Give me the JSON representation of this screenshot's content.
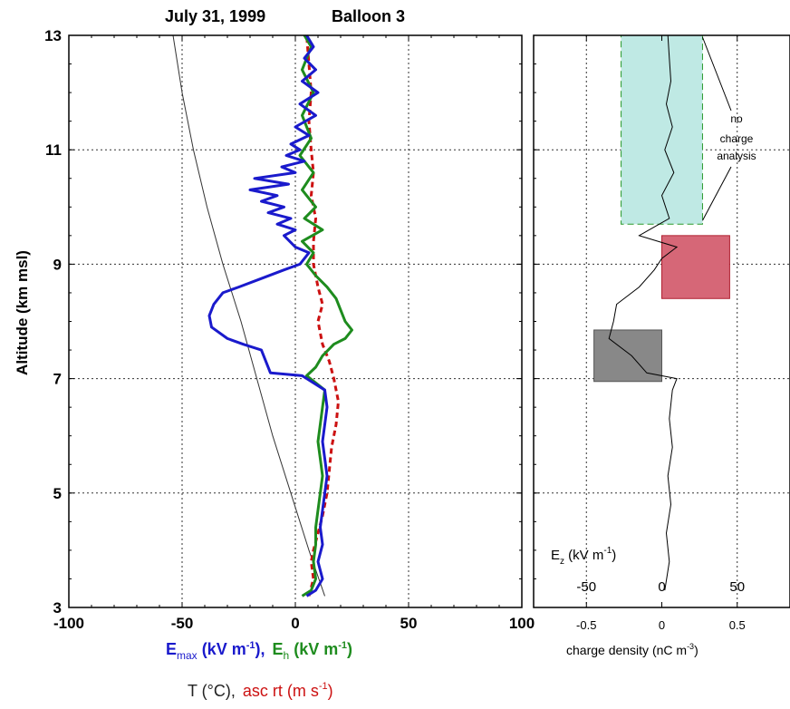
{
  "chart_data": [
    {
      "type": "line",
      "title": "July 31, 1999",
      "subtitle": "Balloon 3",
      "ylabel": "Altitude (km msl)",
      "xlabel_line1": {
        "emax_main": "E",
        "emax_sub": "max",
        "emax_rest": " (kV m",
        "emax_sup": "-1",
        "emax_close": "),",
        "eh_main": "E",
        "eh_sub": "h",
        "eh_rest": " (kV m",
        "eh_sup": "-1",
        "eh_close": ")"
      },
      "xlabel_line2": {
        "t_text": "T (°C),",
        "asc_text": "asc rt (m s",
        "asc_sup": "-1",
        "asc_close": ")"
      },
      "xlim": [
        -100,
        100
      ],
      "ylim": [
        3,
        13
      ],
      "xticks": [
        "-100",
        "-50",
        "0",
        "50",
        "100"
      ],
      "yticks": [
        "3",
        "5",
        "7",
        "9",
        "11",
        "13"
      ],
      "xgrid": [
        -50,
        0,
        50
      ],
      "ygrid": [
        5,
        7,
        9,
        11
      ],
      "colors": {
        "emax": "#1a1acc",
        "eh": "#1e8c1e",
        "temp": "#333333",
        "asc": "#cc1111"
      },
      "series": [
        {
          "key": "emax",
          "points": [
            [
              5,
              3.2
            ],
            [
              9,
              3.3
            ],
            [
              12,
              3.5
            ],
            [
              10,
              3.8
            ],
            [
              12,
              4.1
            ],
            [
              11,
              4.4
            ],
            [
              12,
              4.7
            ],
            [
              13,
              5.0
            ],
            [
              14,
              5.3
            ],
            [
              13,
              5.6
            ],
            [
              12,
              5.9
            ],
            [
              13,
              6.2
            ],
            [
              14,
              6.5
            ],
            [
              13,
              6.8
            ],
            [
              3,
              7.05
            ],
            [
              -11,
              7.1
            ],
            [
              -13,
              7.3
            ],
            [
              -15,
              7.5
            ],
            [
              -23,
              7.6
            ],
            [
              -30,
              7.7
            ],
            [
              -37,
              7.9
            ],
            [
              -38,
              8.1
            ],
            [
              -36,
              8.3
            ],
            [
              -32,
              8.5
            ],
            [
              -25,
              8.6
            ],
            [
              -15,
              8.75
            ],
            [
              -5,
              8.9
            ],
            [
              2,
              9.0
            ],
            [
              6,
              9.2
            ],
            [
              0,
              9.3
            ],
            [
              -5,
              9.5
            ],
            [
              0,
              9.6
            ],
            [
              -8,
              9.7
            ],
            [
              -2,
              9.8
            ],
            [
              -12,
              9.9
            ],
            [
              -5,
              10.0
            ],
            [
              -15,
              10.1
            ],
            [
              -8,
              10.2
            ],
            [
              -20,
              10.3
            ],
            [
              -3,
              10.4
            ],
            [
              -18,
              10.5
            ],
            [
              0,
              10.6
            ],
            [
              -6,
              10.7
            ],
            [
              4,
              10.8
            ],
            [
              -4,
              10.9
            ],
            [
              2,
              11.0
            ],
            [
              -2,
              11.1
            ],
            [
              6,
              11.25
            ],
            [
              0,
              11.4
            ],
            [
              9,
              11.6
            ],
            [
              2,
              11.8
            ],
            [
              10,
              12.0
            ],
            [
              3,
              12.2
            ],
            [
              9,
              12.4
            ],
            [
              4,
              12.6
            ],
            [
              8,
              12.8
            ],
            [
              5,
              13.0
            ]
          ]
        },
        {
          "key": "eh",
          "points": [
            [
              3,
              3.2
            ],
            [
              7,
              3.3
            ],
            [
              9,
              3.5
            ],
            [
              8,
              3.8
            ],
            [
              9,
              4.1
            ],
            [
              9,
              4.4
            ],
            [
              10,
              4.7
            ],
            [
              11,
              5.0
            ],
            [
              12,
              5.3
            ],
            [
              11,
              5.6
            ],
            [
              10,
              5.9
            ],
            [
              11,
              6.2
            ],
            [
              12,
              6.5
            ],
            [
              13,
              6.8
            ],
            [
              5,
              7.05
            ],
            [
              9,
              7.2
            ],
            [
              12,
              7.4
            ],
            [
              17,
              7.6
            ],
            [
              22,
              7.7
            ],
            [
              25,
              7.85
            ],
            [
              22,
              8.0
            ],
            [
              20,
              8.2
            ],
            [
              18,
              8.4
            ],
            [
              14,
              8.6
            ],
            [
              9,
              8.8
            ],
            [
              5,
              9.0
            ],
            [
              8,
              9.2
            ],
            [
              3,
              9.4
            ],
            [
              12,
              9.6
            ],
            [
              4,
              9.8
            ],
            [
              9,
              10.0
            ],
            [
              3,
              10.3
            ],
            [
              8,
              10.6
            ],
            [
              2,
              10.9
            ],
            [
              7,
              11.2
            ],
            [
              3,
              11.6
            ],
            [
              8,
              12.0
            ],
            [
              3,
              12.4
            ],
            [
              7,
              12.8
            ],
            [
              4,
              13.0
            ]
          ]
        },
        {
          "key": "asc",
          "points": [
            [
              6,
              3.2
            ],
            [
              8,
              3.5
            ],
            [
              7,
              3.8
            ],
            [
              8,
              4.0
            ],
            [
              10,
              4.3
            ],
            [
              12,
              4.6
            ],
            [
              14,
              5.0
            ],
            [
              15,
              5.4
            ],
            [
              16,
              5.8
            ],
            [
              18,
              6.2
            ],
            [
              19,
              6.6
            ],
            [
              17,
              7.0
            ],
            [
              15,
              7.3
            ],
            [
              12,
              7.6
            ],
            [
              10,
              8.0
            ],
            [
              12,
              8.3
            ],
            [
              10,
              8.6
            ],
            [
              8,
              9.0
            ],
            [
              8,
              9.4
            ],
            [
              9,
              9.8
            ],
            [
              7,
              10.2
            ],
            [
              8,
              10.6
            ],
            [
              7,
              11.0
            ],
            [
              6,
              11.5
            ],
            [
              7,
              12.0
            ],
            [
              6,
              12.5
            ],
            [
              5,
              13.0
            ]
          ]
        },
        {
          "key": "temp",
          "points": [
            [
              13,
              3.2
            ],
            [
              6,
              4.0
            ],
            [
              -2,
              5.0
            ],
            [
              -10,
              6.0
            ],
            [
              -17,
              7.0
            ],
            [
              -24,
              8.0
            ],
            [
              -32,
              9.0
            ],
            [
              -39,
              10.0
            ],
            [
              -45,
              11.0
            ],
            [
              -50,
              12.0
            ],
            [
              -54,
              13.0
            ]
          ]
        }
      ]
    },
    {
      "type": "line",
      "xlabel": "charge density (nC m",
      "xlabel_sup": "-3",
      "xlabel_close": ")",
      "xlim": [
        -0.85,
        0.85
      ],
      "ylim": [
        3,
        13
      ],
      "xticks": [
        "-0.5",
        "0",
        "0.5"
      ],
      "secondary_axis": {
        "label_main": "E",
        "label_sub": "z",
        "label_rest": " (kV m",
        "label_sup": "-1",
        "label_close": ")",
        "ticks": [
          "-50",
          "0",
          "50"
        ]
      },
      "ez_profile": [
        [
          0.02,
          3.3
        ],
        [
          0.05,
          3.8
        ],
        [
          0.03,
          4.3
        ],
        [
          0.06,
          4.8
        ],
        [
          0.04,
          5.3
        ],
        [
          0.07,
          5.8
        ],
        [
          0.05,
          6.3
        ],
        [
          0.07,
          6.8
        ],
        [
          0.1,
          7.0
        ],
        [
          -0.1,
          7.1
        ],
        [
          -0.2,
          7.4
        ],
        [
          -0.35,
          7.7
        ],
        [
          -0.32,
          8.0
        ],
        [
          -0.3,
          8.3
        ],
        [
          -0.15,
          8.6
        ],
        [
          -0.05,
          8.9
        ],
        [
          0.0,
          9.1
        ],
        [
          0.1,
          9.3
        ],
        [
          -0.15,
          9.5
        ],
        [
          0.05,
          9.8
        ],
        [
          0.0,
          10.2
        ],
        [
          0.08,
          10.6
        ],
        [
          0.02,
          11.0
        ],
        [
          0.07,
          11.4
        ],
        [
          0.03,
          11.8
        ],
        [
          0.06,
          12.2
        ],
        [
          0.05,
          12.6
        ],
        [
          0.04,
          13.0
        ]
      ],
      "boxes": [
        {
          "label": "negative",
          "color": "#888888",
          "x": [
            -0.45,
            0.0
          ],
          "alt": [
            6.95,
            7.85
          ]
        },
        {
          "label": "positive",
          "color": "#d66777",
          "x": [
            0.0,
            0.45
          ],
          "alt": [
            8.4,
            9.5
          ]
        },
        {
          "label": "no-analysis",
          "color": "#bfe9e4",
          "x": [
            -0.27,
            0.27
          ],
          "alt": [
            9.7,
            13.0
          ]
        }
      ],
      "annotation": [
        "no",
        "charge",
        "analysis"
      ]
    }
  ]
}
